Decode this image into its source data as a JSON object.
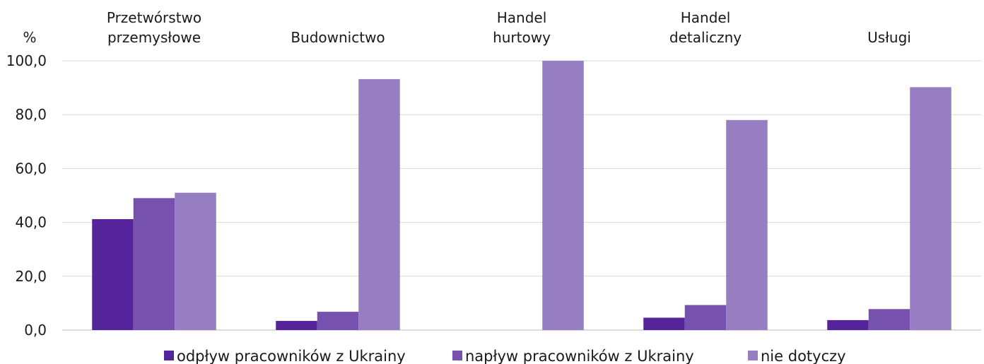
{
  "chart_data": {
    "type": "bar",
    "y_label": "%",
    "categories": [
      "Przetwórstwo przemysłowe",
      "Budownictwo",
      "Handel hurtowy",
      "Handel detaliczny",
      "Usługi"
    ],
    "series": [
      {
        "name": "odpływ pracowników z Ukrainy",
        "color": "#56249a",
        "values": [
          41.2,
          3.4,
          0,
          4.6,
          3.7
        ]
      },
      {
        "name": "napływ pracowników z Ukrainy",
        "color": "#7651ae",
        "values": [
          49.0,
          6.8,
          0,
          9.3,
          7.8
        ]
      },
      {
        "name": "nie dotyczy",
        "color": "#977ec2",
        "values": [
          51.0,
          93.2,
          100,
          78.0,
          90.2
        ]
      }
    ],
    "ylim": [
      0,
      100
    ],
    "yticks": [
      {
        "value": 0,
        "label": "0,0"
      },
      {
        "value": 20,
        "label": "20,0"
      },
      {
        "value": 40,
        "label": "40,0"
      },
      {
        "value": 60,
        "label": "60,0"
      },
      {
        "value": 80,
        "label": "80,0"
      },
      {
        "value": 100,
        "label": "100,0"
      }
    ],
    "grid": true,
    "legend": "bottom"
  }
}
